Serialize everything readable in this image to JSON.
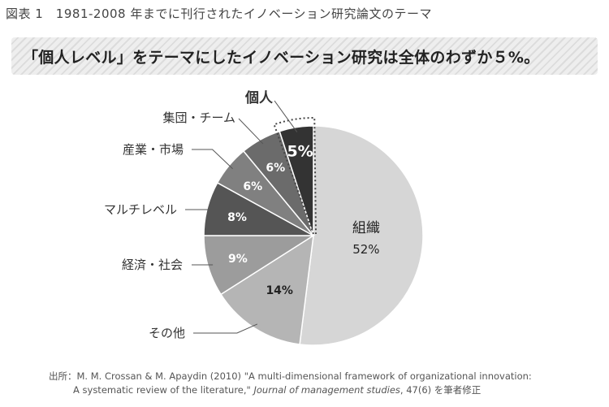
{
  "figure_title": "図表 1　1981-2008 年までに刊行されたイノベーション研究論文のテーマ",
  "banner": "「個人レベル」をテーマにしたイノベーション研究は全体のわずか５%。",
  "source": {
    "line1": "出所：M. M. Crossan & M. Apaydin (2010) \"A multi-dimensional framework of organizational innovation:",
    "line2_start": "A systematic review of the literature,\" ",
    "line2_journal": "Journal of management studies",
    "line2_end": ", 47(6) を筆者修正"
  },
  "chart_data": {
    "type": "pie",
    "start_angle_deg": 0,
    "direction": "clockwise",
    "slices": [
      {
        "label": "組織",
        "value": 52,
        "value_label": "52%",
        "color": "#d6d6d6",
        "label_inside": true
      },
      {
        "label": "その他",
        "value": 14,
        "value_label": "14%",
        "color": "#b5b5b5"
      },
      {
        "label": "経済・社会",
        "value": 9,
        "value_label": "9%",
        "color": "#9c9c9c"
      },
      {
        "label": "マルチレベル",
        "value": 8,
        "value_label": "8%",
        "color": "#555555"
      },
      {
        "label": "産業・市場",
        "value": 6,
        "value_label": "6%",
        "color": "#808080"
      },
      {
        "label": "集団・チーム",
        "value": 6,
        "value_label": "6%",
        "color": "#6b6b6b"
      },
      {
        "label": "個人",
        "value": 5,
        "value_label": "5%",
        "color": "#333333",
        "highlight": true
      }
    ]
  }
}
